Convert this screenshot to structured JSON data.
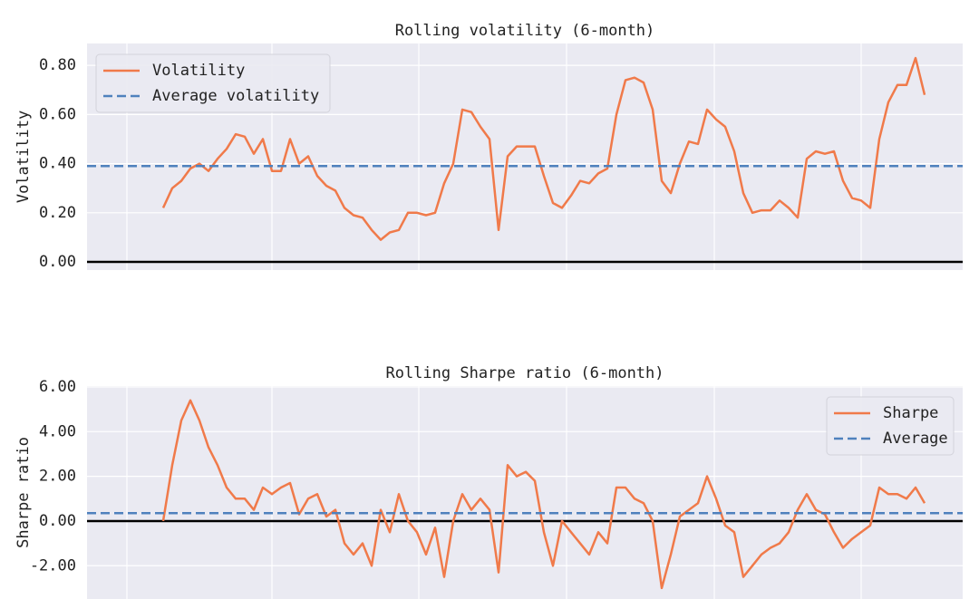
{
  "chart_data": [
    {
      "type": "line",
      "title": "Rolling volatility (6-month)",
      "y_label": "Volatility",
      "xlim": [
        -8.4,
        88.2
      ],
      "xticks": [
        -4,
        12,
        28.2,
        44.5,
        60.8,
        77
      ],
      "ylim": [
        -0.033,
        0.889
      ],
      "yticks": [
        {
          "value": 0,
          "label": "0.00"
        },
        {
          "value": 0.2,
          "label": "0.20"
        },
        {
          "value": 0.4,
          "label": "0.40"
        },
        {
          "value": 0.6,
          "label": "0.60"
        },
        {
          "value": 0.8,
          "label": "0.80"
        }
      ],
      "grid": true,
      "legend": "upper left",
      "axhline": 0,
      "series": [
        {
          "name": "Volatility",
          "color": "#f07a4a",
          "style": "solid",
          "values": [
            0.22,
            0.3,
            0.33,
            0.38,
            0.4,
            0.37,
            0.42,
            0.46,
            0.52,
            0.51,
            0.44,
            0.5,
            0.37,
            0.37,
            0.5,
            0.4,
            0.43,
            0.35,
            0.31,
            0.29,
            0.22,
            0.19,
            0.18,
            0.13,
            0.09,
            0.12,
            0.13,
            0.2,
            0.2,
            0.19,
            0.2,
            0.32,
            0.4,
            0.62,
            0.61,
            0.55,
            0.5,
            0.13,
            0.43,
            0.47,
            0.47,
            0.47,
            0.35,
            0.24,
            0.22,
            0.27,
            0.33,
            0.32,
            0.36,
            0.38,
            0.6,
            0.74,
            0.75,
            0.73,
            0.62,
            0.33,
            0.28,
            0.4,
            0.49,
            0.48,
            0.62,
            0.58,
            0.55,
            0.45,
            0.28,
            0.2,
            0.21,
            0.21,
            0.25,
            0.22,
            0.18,
            0.42,
            0.45,
            0.44,
            0.45,
            0.33,
            0.26,
            0.25,
            0.22,
            0.5,
            0.65,
            0.72,
            0.72,
            0.83,
            0.68
          ]
        },
        {
          "name": "Average volatility",
          "color": "#4f81bd",
          "style": "dashed",
          "value": 0.39
        }
      ]
    },
    {
      "type": "line",
      "title": "Rolling Sharpe ratio (6-month)",
      "y_label": "Sharpe ratio",
      "xlim": [
        -8.4,
        88.2
      ],
      "xticks": [
        -4,
        12,
        28.2,
        44.5,
        60.8,
        77
      ],
      "ylim": [
        -3.49,
        6.04
      ],
      "yticks": [
        {
          "value": -2,
          "label": "-2.00"
        },
        {
          "value": 0,
          "label": "0.00"
        },
        {
          "value": 2,
          "label": "2.00"
        },
        {
          "value": 4,
          "label": "4.00"
        },
        {
          "value": 6,
          "label": "6.00"
        }
      ],
      "grid": true,
      "legend": "upper right",
      "axhline": 0,
      "series": [
        {
          "name": "Sharpe",
          "color": "#f07a4a",
          "style": "solid",
          "values": [
            0.0,
            2.5,
            4.5,
            5.4,
            4.5,
            3.3,
            2.5,
            1.5,
            1.0,
            1.0,
            0.5,
            1.5,
            1.2,
            1.5,
            1.7,
            0.3,
            1.0,
            1.2,
            0.2,
            0.5,
            -1.0,
            -1.5,
            -1.0,
            -2.0,
            0.5,
            -0.5,
            1.2,
            0.0,
            -0.5,
            -1.5,
            -0.3,
            -2.5,
            0.0,
            1.2,
            0.5,
            1.0,
            0.5,
            -2.3,
            2.5,
            2.0,
            2.2,
            1.8,
            -0.5,
            -2.0,
            0.0,
            -0.5,
            -1.0,
            -1.5,
            -0.5,
            -1.0,
            1.5,
            1.5,
            1.0,
            0.8,
            0.0,
            -3.0,
            -1.5,
            0.2,
            0.5,
            0.8,
            2.0,
            1.0,
            -0.2,
            -0.5,
            -2.5,
            -2.0,
            -1.5,
            -1.2,
            -1.0,
            -0.5,
            0.5,
            1.2,
            0.5,
            0.3,
            -0.5,
            -1.2,
            -0.8,
            -0.5,
            -0.2,
            1.5,
            1.2,
            1.2,
            1.0,
            1.5,
            0.8
          ]
        },
        {
          "name": "Average",
          "color": "#4f81bd",
          "style": "dashed",
          "value": 0.35
        }
      ]
    }
  ]
}
